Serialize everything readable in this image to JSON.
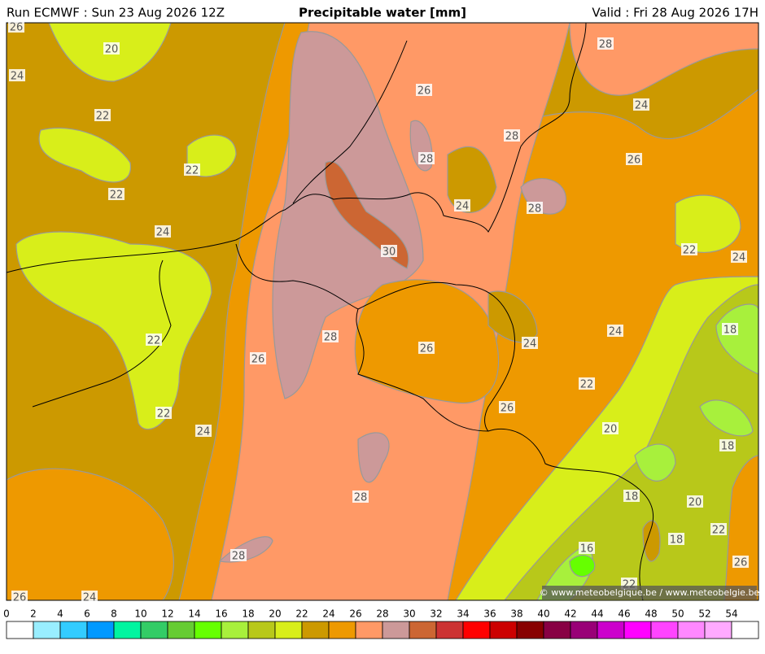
{
  "header": {
    "run": "Run ECMWF : Sun 23 Aug 2026 12Z",
    "title": "Precipitable water [mm]",
    "valid": "Valid : Fri 28 Aug 2026 17H"
  },
  "contour_labels": [
    "26",
    "20",
    "24",
    "22",
    "22",
    "22",
    "24",
    "22",
    "22",
    "24",
    "26",
    "28",
    "30",
    "26",
    "28",
    "24",
    "28",
    "28",
    "28",
    "24",
    "26",
    "22",
    "24",
    "24",
    "18",
    "24",
    "26",
    "22",
    "26",
    "20",
    "18",
    "28",
    "18",
    "20",
    "22",
    "18",
    "16",
    "26",
    "28",
    "26",
    "24",
    "22"
  ],
  "copyright": "© www.meteobelgique.be / www.meteobelgie.be",
  "colorbar": {
    "ticks": [
      0,
      2,
      4,
      6,
      8,
      10,
      12,
      14,
      16,
      18,
      20,
      22,
      24,
      26,
      28,
      30,
      32,
      34,
      36,
      38,
      40,
      42,
      44,
      46,
      48,
      50,
      52,
      54
    ],
    "colors": [
      "#ffffff",
      "#99eeff",
      "#33ccff",
      "#0099ff",
      "#00f5a0",
      "#33cc66",
      "#66cc33",
      "#66ff00",
      "#a8f03c",
      "#b8c81a",
      "#d8ee1a",
      "#cc9900",
      "#ee9900",
      "#ff9966",
      "#cc9999",
      "#cc6633",
      "#cc3333",
      "#ff0000",
      "#cc0000",
      "#880000",
      "#880044",
      "#990077",
      "#cc00cc",
      "#ff00ff",
      "#ff44ff",
      "#ff88ff",
      "#ffaaff",
      "#ffffff"
    ]
  }
}
